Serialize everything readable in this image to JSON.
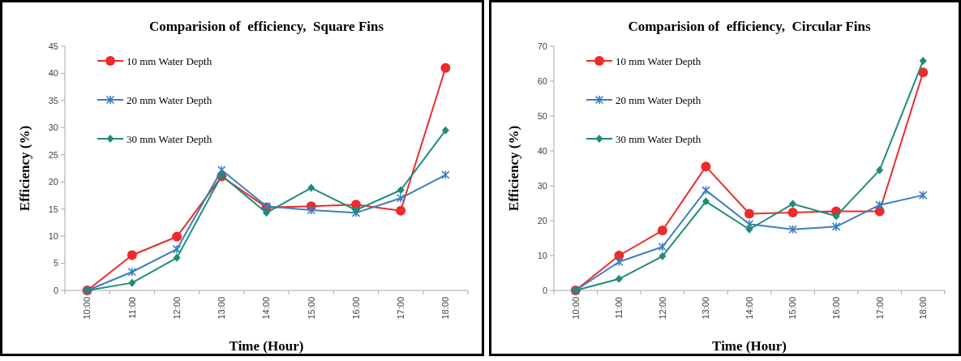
{
  "chart_data": [
    {
      "type": "line",
      "title": "Comparision of  efficiency,  Square Fins",
      "xlabel": "Time (Hour)",
      "ylabel": "Efficiency (%)",
      "categories": [
        "10:00",
        "11:00",
        "12:00",
        "13:00",
        "14:00",
        "15:00",
        "16:00",
        "17:00",
        "18:00"
      ],
      "ylim": [
        0,
        45
      ],
      "yticks": [
        0,
        5,
        10,
        15,
        20,
        25,
        30,
        35,
        40,
        45
      ],
      "legend": "top left",
      "series": [
        {
          "name": "10 mm Water Depth",
          "color": "#ee2a2a",
          "marker": "circle",
          "values": [
            0,
            6.5,
            9.9,
            21,
            15.3,
            15.5,
            15.8,
            14.7,
            41
          ]
        },
        {
          "name": "20 mm Water Depth",
          "color": "#3a7fbf",
          "marker": "cross",
          "values": [
            0,
            3.4,
            7.6,
            22.2,
            15.5,
            14.8,
            14.3,
            17,
            21.3
          ]
        },
        {
          "name": "30 mm Water Depth",
          "color": "#1e8c78",
          "marker": "diamond",
          "values": [
            0,
            1.4,
            6,
            21.2,
            14.3,
            18.9,
            14.8,
            18.5,
            29.5
          ]
        }
      ]
    },
    {
      "type": "line",
      "title": "Comparision of  efficiency,  Circular Fins",
      "xlabel": "Time (Hour)",
      "ylabel": "Efficiency (%)",
      "categories": [
        "10:00",
        "11:00",
        "12:00",
        "13:00",
        "14:00",
        "15:00",
        "16:00",
        "17:00",
        "18:00"
      ],
      "ylim": [
        0,
        70
      ],
      "yticks": [
        0,
        10,
        20,
        30,
        40,
        50,
        60,
        70
      ],
      "legend": "top left",
      "series": [
        {
          "name": "10 mm Water Depth",
          "color": "#ee2a2a",
          "marker": "circle",
          "values": [
            0,
            10,
            17.2,
            35.5,
            22,
            22.3,
            22.7,
            22.7,
            62.5
          ]
        },
        {
          "name": "20 mm Water Depth",
          "color": "#3a7fbf",
          "marker": "cross",
          "values": [
            0,
            8.2,
            12.5,
            28.7,
            19,
            17.5,
            18.3,
            24.5,
            27.3
          ]
        },
        {
          "name": "30 mm Water Depth",
          "color": "#1e8c78",
          "marker": "diamond",
          "values": [
            0,
            3.3,
            9.8,
            25.5,
            17.5,
            24.8,
            21.3,
            34.5,
            65.8
          ]
        }
      ]
    }
  ]
}
